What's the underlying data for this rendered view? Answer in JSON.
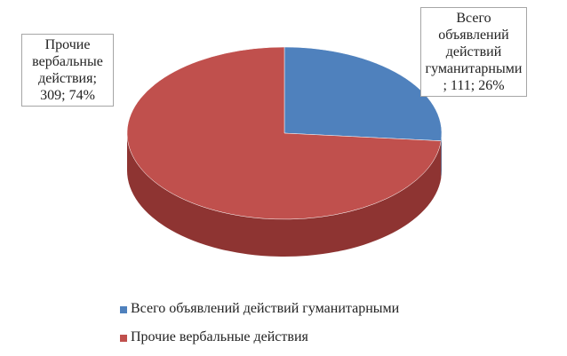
{
  "chart_data": {
    "type": "pie",
    "categories": [
      "Всего объявлений действий гуманитарными",
      "Прочие вербальные действия"
    ],
    "values": [
      111,
      309
    ],
    "percents": [
      26,
      74
    ],
    "percent_labels": [
      "26%",
      "74%"
    ],
    "label_separator": "; ",
    "colors": [
      "#4f81bd",
      "#c0504d"
    ],
    "side_colors": [
      "#3a6596",
      "#8e3432"
    ],
    "legend": "bottom"
  }
}
